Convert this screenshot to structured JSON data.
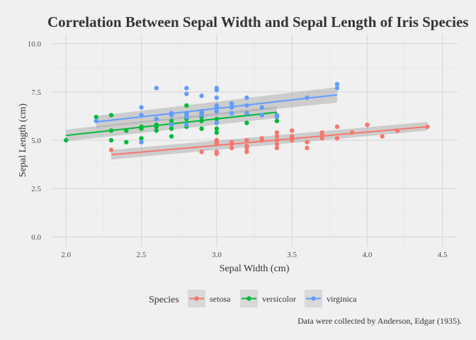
{
  "chart_data": {
    "type": "scatter",
    "title": "Correlation Between Sepal Width and Sepal Length of Iris Species",
    "xlabel": "Sepal Width (cm)",
    "ylabel": "Sepal Length (cm)",
    "caption": "Data were collected by Anderson, Edgar (1935).",
    "xlim": [
      1.9,
      4.6
    ],
    "ylim": [
      -0.5,
      10.5
    ],
    "xticks": [
      2.0,
      2.5,
      3.0,
      3.5,
      4.0,
      4.5
    ],
    "xtick_labels": [
      "2.0",
      "2.5",
      "3.0",
      "3.5",
      "4.0",
      "4.5"
    ],
    "yticks": [
      0,
      2.5,
      5,
      7.5,
      10
    ],
    "ytick_labels": [
      "0.0",
      "2.5",
      "5.0",
      "7.5",
      "10.0"
    ],
    "grid": true,
    "legend": {
      "title": "Species",
      "position": "bottom"
    },
    "trendline": "linear fit with confidence band",
    "series": [
      {
        "name": "setosa",
        "color": "#f8766d",
        "fit": {
          "x": [
            2.3,
            4.4
          ],
          "y": [
            4.25,
            5.7
          ]
        },
        "band": {
          "x": [
            2.3,
            4.4
          ],
          "lower": [
            4.0,
            5.5
          ],
          "upper": [
            4.5,
            5.95
          ]
        },
        "x": [
          2.3,
          2.9,
          3.0,
          3.0,
          3.0,
          3.0,
          3.0,
          3.1,
          3.1,
          3.1,
          3.2,
          3.2,
          3.2,
          3.2,
          3.3,
          3.3,
          3.4,
          3.4,
          3.4,
          3.4,
          3.4,
          3.5,
          3.5,
          3.5,
          3.5,
          3.6,
          3.6,
          3.7,
          3.7,
          3.7,
          3.8,
          3.8,
          3.8,
          3.9,
          4.0,
          4.1,
          4.2,
          4.4
        ],
        "y": [
          4.5,
          4.4,
          4.3,
          4.4,
          4.8,
          4.9,
          5.0,
          4.6,
          4.8,
          4.9,
          4.4,
          4.7,
          5.0,
          4.6,
          5.0,
          5.1,
          4.6,
          4.8,
          5.0,
          5.2,
          5.4,
          5.0,
          5.1,
          5.2,
          5.5,
          4.6,
          4.9,
          5.1,
          5.3,
          5.4,
          5.1,
          5.7,
          5.1,
          5.4,
          5.8,
          5.2,
          5.5,
          5.7
        ]
      },
      {
        "name": "versicolor",
        "color": "#00ba38",
        "fit": {
          "x": [
            2.0,
            3.4
          ],
          "y": [
            5.25,
            6.45
          ]
        },
        "band": {
          "x": [
            2.0,
            3.4
          ],
          "lower": [
            4.95,
            6.15
          ],
          "upper": [
            5.55,
            6.75
          ]
        },
        "x": [
          2.0,
          2.2,
          2.3,
          2.3,
          2.3,
          2.4,
          2.4,
          2.5,
          2.5,
          2.5,
          2.6,
          2.6,
          2.6,
          2.7,
          2.7,
          2.7,
          2.7,
          2.8,
          2.8,
          2.8,
          2.9,
          2.9,
          2.9,
          2.9,
          3.0,
          3.0,
          3.0,
          3.0,
          3.1,
          3.1,
          3.2,
          3.2,
          3.3,
          3.4
        ],
        "y": [
          5.0,
          6.2,
          5.0,
          5.5,
          6.3,
          4.9,
          5.5,
          5.1,
          5.6,
          5.7,
          5.5,
          5.7,
          5.8,
          5.2,
          5.8,
          6.0,
          5.6,
          5.7,
          6.1,
          6.8,
          5.6,
          6.0,
          6.4,
          6.2,
          5.6,
          5.9,
          6.1,
          5.4,
          6.7,
          6.9,
          5.9,
          6.4,
          6.3,
          6.0
        ]
      },
      {
        "name": "virginica",
        "color": "#619cff",
        "fit": {
          "x": [
            2.2,
            3.8
          ],
          "y": [
            5.95,
            7.35
          ]
        },
        "band": {
          "x": [
            2.2,
            3.8
          ],
          "lower": [
            5.65,
            6.95
          ],
          "upper": [
            6.25,
            7.75
          ]
        },
        "x": [
          2.2,
          2.5,
          2.5,
          2.5,
          2.6,
          2.6,
          2.7,
          2.7,
          2.7,
          2.8,
          2.8,
          2.8,
          2.8,
          2.8,
          2.8,
          2.9,
          2.9,
          2.9,
          3.0,
          3.0,
          3.0,
          3.0,
          3.0,
          3.0,
          3.0,
          3.1,
          3.1,
          3.1,
          3.2,
          3.2,
          3.2,
          3.3,
          3.3,
          3.4,
          3.4,
          3.6,
          3.8,
          3.8
        ],
        "y": [
          6.0,
          4.9,
          6.3,
          6.7,
          6.1,
          7.7,
          6.3,
          6.4,
          5.8,
          6.2,
          6.3,
          6.4,
          7.4,
          7.7,
          5.8,
          6.3,
          6.5,
          7.3,
          6.5,
          6.7,
          7.2,
          7.6,
          7.7,
          5.9,
          6.8,
          6.4,
          6.7,
          6.9,
          6.4,
          6.8,
          7.2,
          6.3,
          6.7,
          6.2,
          6.3,
          7.2,
          7.7,
          7.9
        ]
      }
    ]
  }
}
